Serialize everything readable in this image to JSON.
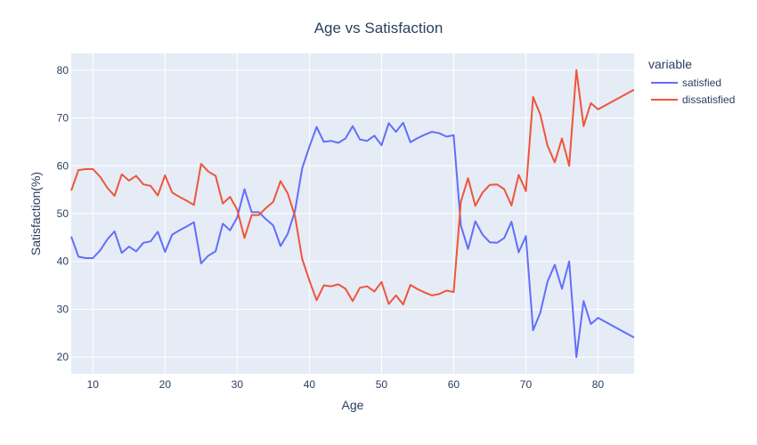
{
  "chart_data": {
    "type": "line",
    "title": "Age vs Satisfaction",
    "xlabel": "Age",
    "ylabel": "Satisfaction(%)",
    "xlim": [
      7,
      85
    ],
    "ylim": [
      16.5,
      83.5
    ],
    "xticks": [
      10,
      20,
      30,
      40,
      50,
      60,
      70,
      80
    ],
    "yticks": [
      20,
      30,
      40,
      50,
      60,
      70,
      80
    ],
    "grid": true,
    "legend": {
      "title": "variable",
      "position": "top-right"
    },
    "background_color": "#E5ECF6",
    "series": [
      {
        "name": "satisfied",
        "color": "#636EFA",
        "x": [
          7,
          8,
          9,
          10,
          11,
          12,
          13,
          14,
          15,
          16,
          17,
          18,
          19,
          20,
          21,
          22,
          23,
          24,
          25,
          26,
          27,
          28,
          29,
          30,
          31,
          32,
          33,
          34,
          35,
          36,
          37,
          38,
          39,
          40,
          41,
          42,
          43,
          44,
          45,
          46,
          47,
          48,
          49,
          50,
          51,
          52,
          53,
          54,
          55,
          56,
          57,
          58,
          59,
          60,
          61,
          62,
          63,
          64,
          65,
          66,
          67,
          68,
          69,
          70,
          71,
          72,
          73,
          74,
          75,
          76,
          77,
          78,
          79,
          80,
          85
        ],
        "y": [
          45.2,
          41.0,
          40.7,
          40.7,
          42.3,
          44.6,
          46.3,
          41.8,
          43.1,
          42.1,
          43.9,
          44.2,
          46.2,
          42.0,
          45.6,
          46.5,
          47.3,
          48.2,
          39.6,
          41.2,
          42.1,
          47.9,
          46.5,
          49.2,
          55.1,
          50.3,
          50.3,
          48.8,
          47.5,
          43.2,
          45.8,
          50.5,
          59.5,
          64.0,
          68.1,
          65.0,
          65.2,
          64.8,
          65.7,
          68.3,
          65.5,
          65.2,
          66.3,
          64.3,
          68.9,
          67.1,
          69.0,
          64.9,
          65.8,
          66.5,
          67.1,
          66.8,
          66.1,
          66.4,
          47.5,
          42.6,
          48.4,
          45.6,
          44.0,
          43.9,
          44.9,
          48.3,
          41.9,
          45.3,
          25.6,
          29.3,
          35.8,
          39.3,
          34.3,
          40.0,
          20.0,
          31.7,
          26.9,
          28.2,
          24.1
        ]
      },
      {
        "name": "dissatisfied",
        "color": "#EF553B",
        "x": [
          7,
          8,
          9,
          10,
          11,
          12,
          13,
          14,
          15,
          16,
          17,
          18,
          19,
          20,
          21,
          22,
          23,
          24,
          25,
          26,
          27,
          28,
          29,
          30,
          31,
          32,
          33,
          34,
          35,
          36,
          37,
          38,
          39,
          40,
          41,
          42,
          43,
          44,
          45,
          46,
          47,
          48,
          49,
          50,
          51,
          52,
          53,
          54,
          55,
          56,
          57,
          58,
          59,
          60,
          61,
          62,
          63,
          64,
          65,
          66,
          67,
          68,
          69,
          70,
          71,
          72,
          73,
          74,
          75,
          76,
          77,
          78,
          79,
          80,
          85
        ],
        "y": [
          54.8,
          59.1,
          59.3,
          59.3,
          57.7,
          55.4,
          53.7,
          58.2,
          56.9,
          57.9,
          56.1,
          55.8,
          53.8,
          58.0,
          54.4,
          53.5,
          52.7,
          51.8,
          60.4,
          58.8,
          57.9,
          52.1,
          53.5,
          50.8,
          44.9,
          49.7,
          49.7,
          51.2,
          52.5,
          56.8,
          54.2,
          49.5,
          40.5,
          36.0,
          31.9,
          35.0,
          34.8,
          35.2,
          34.3,
          31.7,
          34.5,
          34.8,
          33.7,
          35.7,
          31.1,
          32.9,
          31.0,
          35.1,
          34.2,
          33.5,
          32.9,
          33.2,
          33.9,
          33.6,
          52.5,
          57.4,
          51.6,
          54.4,
          56.0,
          56.1,
          55.1,
          51.7,
          58.1,
          54.7,
          74.4,
          70.7,
          64.2,
          60.7,
          65.7,
          60.0,
          80.0,
          68.3,
          73.1,
          71.8,
          75.9
        ]
      }
    ]
  }
}
